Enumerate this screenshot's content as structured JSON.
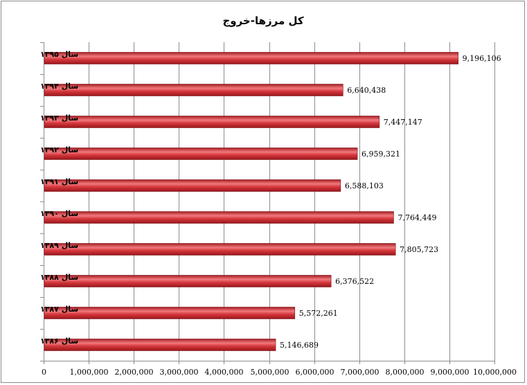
{
  "chart_data": {
    "type": "bar",
    "orientation": "horizontal",
    "title": "کل مرزها-خروج",
    "xlabel": "",
    "ylabel": "",
    "categories": [
      "سال ۱۳۹۵",
      "سال ۱۳۹۴",
      "سال ۱۳۹۳",
      "سال ۱۳۹۲",
      "سال ۱۳۹۱",
      "سال ۱۳۹۰",
      "سال ۱۳۸۹",
      "سال ۱۳۸۸",
      "سال ۱۳۸۷",
      "سال ۱۳۸۶"
    ],
    "values": [
      9196106,
      6640438,
      7447147,
      6959321,
      6588103,
      7764449,
      7805723,
      6376522,
      5572261,
      5146689
    ],
    "value_labels": [
      "9,196,106",
      "6,640,438",
      "7,447,147",
      "6,959,321",
      "6,588,103",
      "7,764,449",
      "7,805,723",
      "6,376,522",
      "5,572,261",
      "5,146,689"
    ],
    "xlim": [
      0,
      10000000
    ],
    "x_ticks": [
      0,
      1000000,
      2000000,
      3000000,
      4000000,
      5000000,
      6000000,
      7000000,
      8000000,
      9000000,
      10000000
    ],
    "x_tick_labels": [
      "0",
      "1,000,000",
      "2,000,000",
      "3,000,000",
      "4,000,000",
      "5,000,000",
      "6,000,000",
      "7,000,000",
      "8,000,000",
      "9,000,000",
      "10,000,000"
    ],
    "grid": true,
    "legend": "none",
    "bar_color": "#c0282d",
    "bar_highlight_color": "#f07a7d"
  }
}
